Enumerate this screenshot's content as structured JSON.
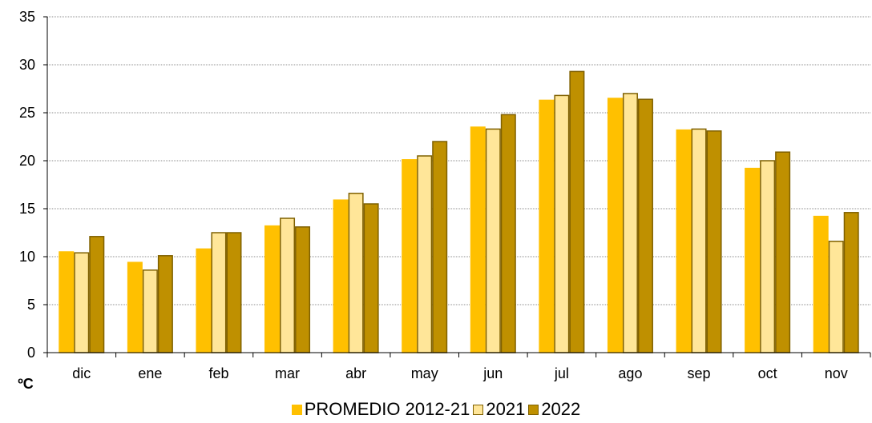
{
  "chart_data": {
    "type": "bar",
    "title": "",
    "xlabel": "",
    "ylabel": "ºC",
    "ylim": [
      0,
      35
    ],
    "yticks": [
      0,
      5,
      10,
      15,
      20,
      25,
      30,
      35
    ],
    "grid": true,
    "legend_position": "bottom",
    "categories": [
      "dic",
      "ene",
      "feb",
      "mar",
      "abr",
      "may",
      "jun",
      "jul",
      "ago",
      "sep",
      "oct",
      "nov"
    ],
    "series": [
      {
        "name": "PROMEDIO 2012-21",
        "color": "#FFC000",
        "border": "#FFC000",
        "values": [
          10.5,
          9.4,
          10.8,
          13.2,
          15.9,
          20.1,
          23.5,
          26.3,
          26.5,
          23.2,
          19.2,
          14.2
        ]
      },
      {
        "name": "2021",
        "color": "#FFE699",
        "border": "#7F6000",
        "values": [
          10.4,
          8.6,
          12.5,
          14.0,
          16.6,
          20.5,
          23.3,
          26.8,
          27.0,
          23.3,
          20.0,
          11.6
        ]
      },
      {
        "name": "2022",
        "color": "#BF9000",
        "border": "#7F6000",
        "values": [
          12.1,
          10.1,
          12.5,
          13.1,
          15.5,
          22.0,
          24.8,
          29.3,
          26.4,
          23.1,
          20.9,
          14.6
        ]
      }
    ]
  }
}
